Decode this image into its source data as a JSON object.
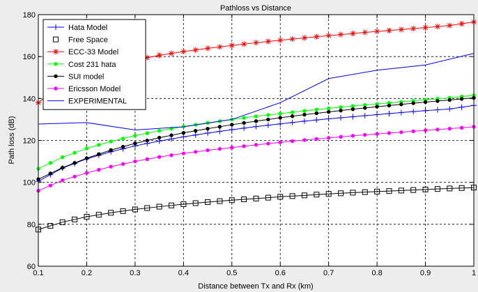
{
  "chart_data": {
    "type": "line",
    "title": "Pathloss vs Distance",
    "xlabel": "Distance between Tx and Rx (km)",
    "ylabel": "Path loss (dB)",
    "xlim": [
      0.1,
      1
    ],
    "ylim": [
      60,
      180
    ],
    "x_ticks": [
      0.1,
      0.2,
      0.3,
      0.4,
      0.5,
      0.6,
      0.7,
      0.8,
      0.9,
      1
    ],
    "x_tick_labels": [
      "0.1",
      "0.2",
      "0.3",
      "0.4",
      "0.5",
      "0.6",
      "0.7",
      "0.8",
      "0.9",
      "1"
    ],
    "y_ticks": [
      60,
      80,
      100,
      120,
      140,
      160,
      180
    ],
    "y_tick_labels": [
      "60",
      "80",
      "100",
      "120",
      "140",
      "160",
      "180"
    ],
    "grid": true,
    "legend_position": "top-left",
    "series": [
      {
        "name": "Hata Model",
        "color": "#0000ff",
        "marker": "plus",
        "x": [
          0.1,
          0.15,
          0.2,
          0.25,
          0.3,
          0.35,
          0.4,
          0.45,
          0.5,
          0.55,
          0.6,
          0.65,
          0.7,
          0.75,
          0.8,
          0.85,
          0.9,
          0.95,
          1.0
        ],
        "y": [
          100.5,
          106.8,
          111.2,
          114.6,
          117.4,
          119.7,
          121.7,
          123.5,
          125.1,
          126.6,
          127.9,
          129.2,
          130.3,
          131.3,
          132.3,
          133.3,
          134.2,
          135.0,
          136.7
        ]
      },
      {
        "name": "Free Space",
        "color": "#000000",
        "marker": "square",
        "x": [
          0.1,
          0.15,
          0.2,
          0.25,
          0.3,
          0.35,
          0.4,
          0.45,
          0.5,
          0.55,
          0.6,
          0.65,
          0.7,
          0.75,
          0.8,
          0.85,
          0.9,
          0.95,
          1.0
        ],
        "y": [
          77.5,
          81.0,
          83.6,
          85.5,
          87.1,
          88.4,
          89.6,
          90.6,
          91.5,
          92.3,
          93.1,
          93.8,
          94.5,
          95.1,
          95.6,
          96.1,
          96.6,
          97.1,
          97.5
        ]
      },
      {
        "name": "ECC-33 Model",
        "color": "#ff0000",
        "marker": "asterisk",
        "x": [
          0.1,
          0.15,
          0.2,
          0.25,
          0.3,
          0.35,
          0.4,
          0.45,
          0.5,
          0.55,
          0.6,
          0.65,
          0.7,
          0.75,
          0.8,
          0.85,
          0.9,
          0.95,
          1.0
        ],
        "y": [
          138.0,
          147.2,
          152.4,
          155.8,
          158.4,
          160.6,
          162.4,
          163.9,
          165.3,
          166.6,
          167.8,
          168.9,
          170.0,
          171.0,
          172.0,
          172.9,
          173.8,
          174.8,
          176.5
        ]
      },
      {
        "name": "Cost 231 hata",
        "color": "#00ff00",
        "marker": "dot",
        "x": [
          0.1,
          0.15,
          0.2,
          0.25,
          0.3,
          0.35,
          0.4,
          0.45,
          0.5,
          0.55,
          0.6,
          0.65,
          0.7,
          0.75,
          0.8,
          0.85,
          0.9,
          0.95,
          1.0
        ],
        "y": [
          106.5,
          112.0,
          116.2,
          119.5,
          122.3,
          124.6,
          126.6,
          128.4,
          130.0,
          131.5,
          132.8,
          134.1,
          135.3,
          136.4,
          137.4,
          138.4,
          139.4,
          140.3,
          141.5
        ]
      },
      {
        "name": "SUI model",
        "color": "#000000",
        "marker": "dot",
        "x": [
          0.1,
          0.15,
          0.2,
          0.25,
          0.3,
          0.35,
          0.4,
          0.45,
          0.5,
          0.55,
          0.6,
          0.65,
          0.7,
          0.75,
          0.8,
          0.85,
          0.9,
          0.95,
          1.0
        ],
        "y": [
          101.5,
          107.0,
          111.5,
          115.4,
          118.6,
          121.3,
          123.6,
          125.6,
          127.5,
          129.2,
          130.8,
          132.3,
          133.6,
          134.9,
          136.1,
          137.2,
          138.3,
          139.3,
          140.3
        ]
      },
      {
        "name": "Ericsson Model",
        "color": "#ff00ff",
        "marker": "dot",
        "x": [
          0.1,
          0.15,
          0.2,
          0.25,
          0.3,
          0.35,
          0.4,
          0.45,
          0.5,
          0.55,
          0.6,
          0.65,
          0.7,
          0.75,
          0.8,
          0.85,
          0.9,
          0.95,
          1.0
        ],
        "y": [
          96.0,
          101.0,
          104.5,
          107.5,
          110.0,
          112.1,
          113.8,
          115.3,
          116.6,
          117.9,
          119.1,
          120.2,
          121.2,
          122.2,
          123.1,
          123.9,
          124.8,
          125.6,
          126.5
        ]
      },
      {
        "name": "EXPERIMENTAL",
        "color": "#0000ff",
        "marker": "none",
        "x": [
          0.1,
          0.2,
          0.3,
          0.4,
          0.5,
          0.6,
          0.7,
          0.8,
          0.9,
          1.0
        ],
        "y": [
          127.8,
          128.5,
          125.0,
          126.5,
          130.0,
          138.0,
          149.5,
          153.5,
          156.0,
          161.5
        ]
      }
    ]
  }
}
